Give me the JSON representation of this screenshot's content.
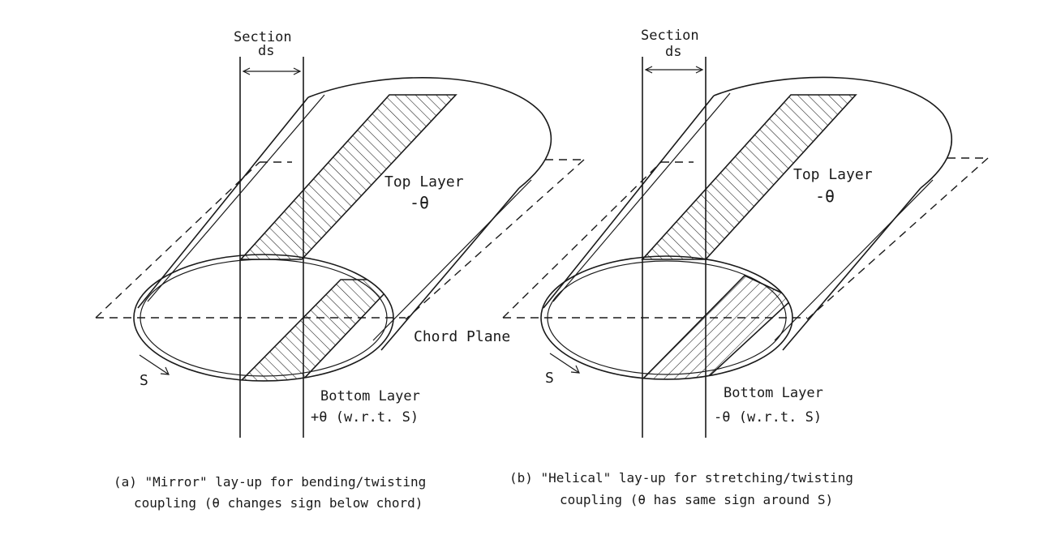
{
  "left": {
    "section_label": "Section",
    "ds_label": "ds",
    "top_layer_label": "Top Layer",
    "top_layer_angle": "-θ",
    "chord_plane_label": "Chord Plane",
    "s_label": "S",
    "bottom_layer_label": "Bottom Layer",
    "bottom_layer_angle": "+θ (w.r.t. S)",
    "caption_line1": "(a) \"Mirror\" lay-up for bending/twisting",
    "caption_line2": "coupling (θ changes sign below chord)"
  },
  "right": {
    "section_label": "Section",
    "ds_label": "ds",
    "top_layer_label": "Top Layer",
    "top_layer_angle": "-θ",
    "s_label": "S",
    "bottom_layer_label": "Bottom Layer",
    "bottom_layer_angle": "-θ (w.r.t. S)",
    "caption_line1": "(b) \"Helical\" lay-up for stretching/twisting",
    "caption_line2": "coupling (θ has same sign around S)"
  }
}
